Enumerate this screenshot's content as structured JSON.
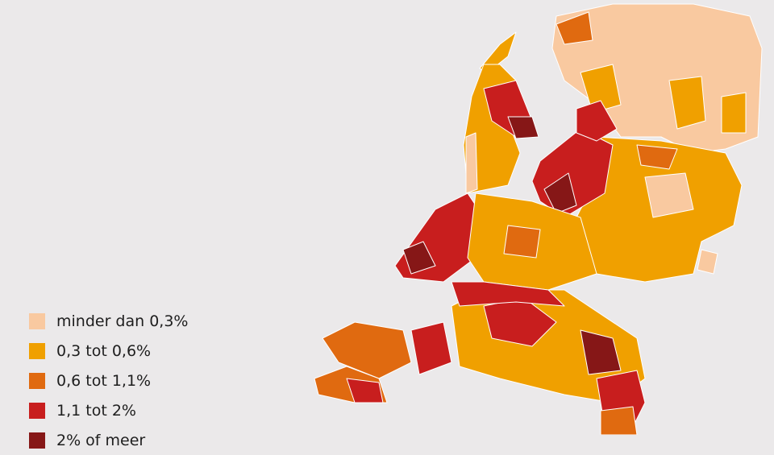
{
  "legend": {
    "items": [
      {
        "label": "minder dan 0,3%",
        "color": "#f9c9a0"
      },
      {
        "label": "0,3 tot 0,6%",
        "color": "#f0a000"
      },
      {
        "label": "0,6 tot 1,1%",
        "color": "#e06a10"
      },
      {
        "label": "1,1 tot 2%",
        "color": "#c81e1e"
      },
      {
        "label": "2% of meer",
        "color": "#861717"
      }
    ]
  },
  "regions": [
    {
      "name": "noord-oost",
      "class": 0
    },
    {
      "name": "noord-oost-vlek-1",
      "class": 1
    },
    {
      "name": "noord-oost-vlek-2",
      "class": 1
    },
    {
      "name": "noord-oost-vlek-3",
      "class": 1
    },
    {
      "name": "noord-oost-vlek-4",
      "class": 2
    },
    {
      "name": "oost",
      "class": 1
    },
    {
      "name": "oost-vlek-1",
      "class": 0
    },
    {
      "name": "oost-vlek-2",
      "class": 2
    },
    {
      "name": "oost-vlek-3",
      "class": 0
    },
    {
      "name": "flevoland",
      "class": 3
    },
    {
      "name": "flevoland-donker",
      "class": 4
    },
    {
      "name": "noordoostpolder",
      "class": 3
    },
    {
      "name": "waddeneiland",
      "class": 1
    },
    {
      "name": "noord-holland",
      "class": 1
    },
    {
      "name": "noord-holland-strip",
      "class": 0
    },
    {
      "name": "west-friesland",
      "class": 3
    },
    {
      "name": "west-friesland-donker",
      "class": 4
    },
    {
      "name": "zuid-holland",
      "class": 3
    },
    {
      "name": "zuid-holland-donker",
      "class": 4
    },
    {
      "name": "midden",
      "class": 1
    },
    {
      "name": "midden-vlek",
      "class": 2
    },
    {
      "name": "zeeland-noord",
      "class": 2
    },
    {
      "name": "zeeland-rood",
      "class": 3
    },
    {
      "name": "zeeuws-vlaanderen",
      "class": 2
    },
    {
      "name": "zeeuws-vlaanderen-rood",
      "class": 3
    },
    {
      "name": "brabant",
      "class": 1
    },
    {
      "name": "brabant-rood",
      "class": 3
    },
    {
      "name": "brabant-donker",
      "class": 4
    },
    {
      "name": "rivierengebied",
      "class": 3
    },
    {
      "name": "limburg",
      "class": 3
    },
    {
      "name": "limburg-zuid",
      "class": 2
    }
  ]
}
